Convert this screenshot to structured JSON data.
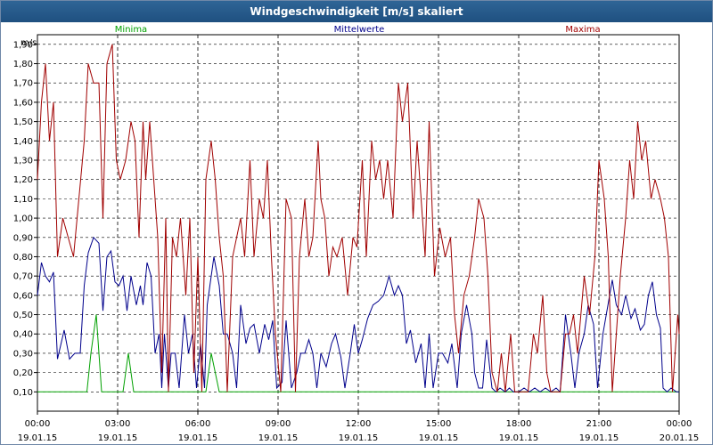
{
  "window": {
    "title": "Windgeschwindigkeit [m/s] skaliert"
  },
  "chart_data": {
    "type": "line",
    "ylabel": "m/s",
    "ylim": [
      0.0,
      1.95
    ],
    "grid": true,
    "legend_position": "top",
    "y_ticks": [
      "0,10",
      "0,20",
      "0,30",
      "0,40",
      "0,50",
      "0,60",
      "0,70",
      "0,80",
      "0,90",
      "1,00",
      "1,10",
      "1,20",
      "1,30",
      "1,40",
      "1,50",
      "1,60",
      "1,70",
      "1,80",
      "1,90"
    ],
    "x_ticks": [
      {
        "time": "00:00",
        "date": "19.01.15"
      },
      {
        "time": "03:00",
        "date": "19.01.15"
      },
      {
        "time": "06:00",
        "date": "19.01.15"
      },
      {
        "time": "09:00",
        "date": "19.01.15"
      },
      {
        "time": "12:00",
        "date": "19.01.15"
      },
      {
        "time": "15:00",
        "date": "19.01.15"
      },
      {
        "time": "18:00",
        "date": "19.01.15"
      },
      {
        "time": "21:00",
        "date": "19.01.15"
      },
      {
        "time": "00:00",
        "date": "20.01.15"
      }
    ],
    "x_unit": "hours",
    "xlim": [
      0,
      24
    ],
    "series": [
      {
        "name": "Minima",
        "color": "#00a000",
        "points": [
          [
            0,
            0.1
          ],
          [
            1.85,
            0.1
          ],
          [
            2.0,
            0.3
          ],
          [
            2.2,
            0.5
          ],
          [
            2.4,
            0.1
          ],
          [
            3.2,
            0.1
          ],
          [
            3.4,
            0.3
          ],
          [
            3.6,
            0.1
          ],
          [
            6.3,
            0.1
          ],
          [
            6.5,
            0.3
          ],
          [
            6.8,
            0.1
          ],
          [
            24,
            0.1
          ]
        ]
      },
      {
        "name": "Mittelwerte",
        "color": "#00008b",
        "points": [
          [
            0,
            0.6
          ],
          [
            0.15,
            0.77
          ],
          [
            0.3,
            0.7
          ],
          [
            0.45,
            0.67
          ],
          [
            0.6,
            0.72
          ],
          [
            0.75,
            0.27
          ],
          [
            1.0,
            0.42
          ],
          [
            1.2,
            0.27
          ],
          [
            1.4,
            0.3
          ],
          [
            1.6,
            0.3
          ],
          [
            1.75,
            0.65
          ],
          [
            1.9,
            0.82
          ],
          [
            2.1,
            0.9
          ],
          [
            2.3,
            0.87
          ],
          [
            2.45,
            0.52
          ],
          [
            2.6,
            0.8
          ],
          [
            2.75,
            0.83
          ],
          [
            2.9,
            0.67
          ],
          [
            3.05,
            0.65
          ],
          [
            3.2,
            0.7
          ],
          [
            3.35,
            0.52
          ],
          [
            3.5,
            0.7
          ],
          [
            3.7,
            0.55
          ],
          [
            3.85,
            0.65
          ],
          [
            3.95,
            0.55
          ],
          [
            4.1,
            0.77
          ],
          [
            4.25,
            0.7
          ],
          [
            4.4,
            0.3
          ],
          [
            4.55,
            0.4
          ],
          [
            4.65,
            0.12
          ],
          [
            4.75,
            0.4
          ],
          [
            4.9,
            0.12
          ],
          [
            5.0,
            0.3
          ],
          [
            5.15,
            0.3
          ],
          [
            5.3,
            0.12
          ],
          [
            5.5,
            0.5
          ],
          [
            5.65,
            0.3
          ],
          [
            5.8,
            0.4
          ],
          [
            5.95,
            0.12
          ],
          [
            6.1,
            0.35
          ],
          [
            6.25,
            0.12
          ],
          [
            6.35,
            0.55
          ],
          [
            6.6,
            0.8
          ],
          [
            6.8,
            0.65
          ],
          [
            6.95,
            0.4
          ],
          [
            7.1,
            0.4
          ],
          [
            7.3,
            0.3
          ],
          [
            7.45,
            0.12
          ],
          [
            7.6,
            0.55
          ],
          [
            7.8,
            0.35
          ],
          [
            7.95,
            0.43
          ],
          [
            8.1,
            0.45
          ],
          [
            8.3,
            0.3
          ],
          [
            8.5,
            0.45
          ],
          [
            8.65,
            0.37
          ],
          [
            8.8,
            0.47
          ],
          [
            8.95,
            0.12
          ],
          [
            9.15,
            0.15
          ],
          [
            9.3,
            0.47
          ],
          [
            9.5,
            0.12
          ],
          [
            9.7,
            0.2
          ],
          [
            9.85,
            0.3
          ],
          [
            10.0,
            0.3
          ],
          [
            10.15,
            0.37
          ],
          [
            10.3,
            0.3
          ],
          [
            10.45,
            0.12
          ],
          [
            10.6,
            0.3
          ],
          [
            10.8,
            0.23
          ],
          [
            11.0,
            0.35
          ],
          [
            11.15,
            0.4
          ],
          [
            11.35,
            0.28
          ],
          [
            11.5,
            0.12
          ],
          [
            11.7,
            0.3
          ],
          [
            11.85,
            0.45
          ],
          [
            12.0,
            0.3
          ],
          [
            12.15,
            0.37
          ],
          [
            12.35,
            0.48
          ],
          [
            12.55,
            0.55
          ],
          [
            12.75,
            0.57
          ],
          [
            12.95,
            0.6
          ],
          [
            13.15,
            0.7
          ],
          [
            13.35,
            0.6
          ],
          [
            13.5,
            0.65
          ],
          [
            13.65,
            0.6
          ],
          [
            13.8,
            0.35
          ],
          [
            13.95,
            0.42
          ],
          [
            14.15,
            0.25
          ],
          [
            14.35,
            0.35
          ],
          [
            14.5,
            0.12
          ],
          [
            14.65,
            0.4
          ],
          [
            14.8,
            0.12
          ],
          [
            15.0,
            0.3
          ],
          [
            15.15,
            0.3
          ],
          [
            15.35,
            0.25
          ],
          [
            15.5,
            0.35
          ],
          [
            15.7,
            0.12
          ],
          [
            15.85,
            0.4
          ],
          [
            16.05,
            0.55
          ],
          [
            16.25,
            0.4
          ],
          [
            16.35,
            0.2
          ],
          [
            16.5,
            0.12
          ],
          [
            16.65,
            0.12
          ],
          [
            16.8,
            0.37
          ],
          [
            17.0,
            0.12
          ],
          [
            17.15,
            0.1
          ],
          [
            17.3,
            0.12
          ],
          [
            17.5,
            0.1
          ],
          [
            17.65,
            0.12
          ],
          [
            17.8,
            0.1
          ],
          [
            18.0,
            0.1
          ],
          [
            18.2,
            0.12
          ],
          [
            18.4,
            0.1
          ],
          [
            18.6,
            0.12
          ],
          [
            18.8,
            0.1
          ],
          [
            19.0,
            0.12
          ],
          [
            19.2,
            0.1
          ],
          [
            19.4,
            0.12
          ],
          [
            19.55,
            0.1
          ],
          [
            19.75,
            0.5
          ],
          [
            19.95,
            0.3
          ],
          [
            20.1,
            0.12
          ],
          [
            20.25,
            0.3
          ],
          [
            20.45,
            0.4
          ],
          [
            20.6,
            0.55
          ],
          [
            20.8,
            0.45
          ],
          [
            20.95,
            0.12
          ],
          [
            21.15,
            0.4
          ],
          [
            21.3,
            0.52
          ],
          [
            21.5,
            0.68
          ],
          [
            21.65,
            0.55
          ],
          [
            21.85,
            0.5
          ],
          [
            22.0,
            0.6
          ],
          [
            22.2,
            0.48
          ],
          [
            22.35,
            0.53
          ],
          [
            22.55,
            0.42
          ],
          [
            22.7,
            0.45
          ],
          [
            22.85,
            0.6
          ],
          [
            23.0,
            0.67
          ],
          [
            23.15,
            0.5
          ],
          [
            23.3,
            0.43
          ],
          [
            23.4,
            0.12
          ],
          [
            23.55,
            0.1
          ],
          [
            23.7,
            0.12
          ],
          [
            23.9,
            0.1
          ],
          [
            24.0,
            0.1
          ]
        ]
      },
      {
        "name": "Maxima",
        "color": "#a00000",
        "points": [
          [
            0,
            1.2
          ],
          [
            0.15,
            1.6
          ],
          [
            0.3,
            1.8
          ],
          [
            0.45,
            1.4
          ],
          [
            0.6,
            1.6
          ],
          [
            0.75,
            0.8
          ],
          [
            0.95,
            1.0
          ],
          [
            1.15,
            0.9
          ],
          [
            1.35,
            0.8
          ],
          [
            1.55,
            1.1
          ],
          [
            1.75,
            1.4
          ],
          [
            1.9,
            1.8
          ],
          [
            2.1,
            1.7
          ],
          [
            2.3,
            1.7
          ],
          [
            2.45,
            1.0
          ],
          [
            2.6,
            1.8
          ],
          [
            2.8,
            1.9
          ],
          [
            2.95,
            1.3
          ],
          [
            3.1,
            1.2
          ],
          [
            3.3,
            1.3
          ],
          [
            3.5,
            1.5
          ],
          [
            3.65,
            1.4
          ],
          [
            3.8,
            0.9
          ],
          [
            3.95,
            1.5
          ],
          [
            4.05,
            1.2
          ],
          [
            4.2,
            1.5
          ],
          [
            4.35,
            1.2
          ],
          [
            4.5,
            0.9
          ],
          [
            4.65,
            0.2
          ],
          [
            4.8,
            1.0
          ],
          [
            4.9,
            0.1
          ],
          [
            5.05,
            0.9
          ],
          [
            5.2,
            0.8
          ],
          [
            5.35,
            1.0
          ],
          [
            5.55,
            0.6
          ],
          [
            5.7,
            1.0
          ],
          [
            5.85,
            0.2
          ],
          [
            6.0,
            0.8
          ],
          [
            6.15,
            0.1
          ],
          [
            6.3,
            1.2
          ],
          [
            6.5,
            1.4
          ],
          [
            6.65,
            1.2
          ],
          [
            6.8,
            0.9
          ],
          [
            6.95,
            0.7
          ],
          [
            7.1,
            0.1
          ],
          [
            7.3,
            0.8
          ],
          [
            7.45,
            0.9
          ],
          [
            7.6,
            1.0
          ],
          [
            7.75,
            0.8
          ],
          [
            7.95,
            1.3
          ],
          [
            8.1,
            0.8
          ],
          [
            8.3,
            1.1
          ],
          [
            8.45,
            1.0
          ],
          [
            8.6,
            1.3
          ],
          [
            8.75,
            0.8
          ],
          [
            8.9,
            0.4
          ],
          [
            9.1,
            0.1
          ],
          [
            9.3,
            1.1
          ],
          [
            9.5,
            1.0
          ],
          [
            9.65,
            0.1
          ],
          [
            9.8,
            0.8
          ],
          [
            10.0,
            1.1
          ],
          [
            10.15,
            0.8
          ],
          [
            10.3,
            0.9
          ],
          [
            10.5,
            1.4
          ],
          [
            10.6,
            1.1
          ],
          [
            10.75,
            1.0
          ],
          [
            10.9,
            0.7
          ],
          [
            11.05,
            0.85
          ],
          [
            11.2,
            0.8
          ],
          [
            11.4,
            0.9
          ],
          [
            11.6,
            0.6
          ],
          [
            11.8,
            0.9
          ],
          [
            11.95,
            0.85
          ],
          [
            12.15,
            1.3
          ],
          [
            12.3,
            0.8
          ],
          [
            12.5,
            1.4
          ],
          [
            12.65,
            1.2
          ],
          [
            12.8,
            1.3
          ],
          [
            12.95,
            1.1
          ],
          [
            13.1,
            1.3
          ],
          [
            13.3,
            1.0
          ],
          [
            13.5,
            1.7
          ],
          [
            13.65,
            1.5
          ],
          [
            13.85,
            1.7
          ],
          [
            14.05,
            1.0
          ],
          [
            14.2,
            1.4
          ],
          [
            14.35,
            1.1
          ],
          [
            14.5,
            0.8
          ],
          [
            14.65,
            1.5
          ],
          [
            14.85,
            0.7
          ],
          [
            15.05,
            0.95
          ],
          [
            15.25,
            0.8
          ],
          [
            15.45,
            0.9
          ],
          [
            15.6,
            0.5
          ],
          [
            15.75,
            0.3
          ],
          [
            15.95,
            0.6
          ],
          [
            16.15,
            0.7
          ],
          [
            16.35,
            0.9
          ],
          [
            16.5,
            1.1
          ],
          [
            16.7,
            1.0
          ],
          [
            16.85,
            0.7
          ],
          [
            17.0,
            0.2
          ],
          [
            17.2,
            0.1
          ],
          [
            17.35,
            0.3
          ],
          [
            17.5,
            0.1
          ],
          [
            17.7,
            0.4
          ],
          [
            17.85,
            0.1
          ],
          [
            18.05,
            0.1
          ],
          [
            18.2,
            0.1
          ],
          [
            18.35,
            0.1
          ],
          [
            18.55,
            0.4
          ],
          [
            18.7,
            0.3
          ],
          [
            18.9,
            0.6
          ],
          [
            19.05,
            0.2
          ],
          [
            19.2,
            0.1
          ],
          [
            19.4,
            0.1
          ],
          [
            19.55,
            0.1
          ],
          [
            19.75,
            0.4
          ],
          [
            19.9,
            0.4
          ],
          [
            20.05,
            0.5
          ],
          [
            20.2,
            0.3
          ],
          [
            20.45,
            0.7
          ],
          [
            20.65,
            0.5
          ],
          [
            20.85,
            0.8
          ],
          [
            21.0,
            1.3
          ],
          [
            21.2,
            1.1
          ],
          [
            21.35,
            0.8
          ],
          [
            21.5,
            0.1
          ],
          [
            21.65,
            0.4
          ],
          [
            21.8,
            0.7
          ],
          [
            22.0,
            1.0
          ],
          [
            22.15,
            1.3
          ],
          [
            22.3,
            1.1
          ],
          [
            22.45,
            1.5
          ],
          [
            22.6,
            1.3
          ],
          [
            22.75,
            1.4
          ],
          [
            22.95,
            1.1
          ],
          [
            23.1,
            1.2
          ],
          [
            23.3,
            1.1
          ],
          [
            23.45,
            1.0
          ],
          [
            23.6,
            0.8
          ],
          [
            23.75,
            0.1
          ],
          [
            23.95,
            0.5
          ],
          [
            24.0,
            0.4
          ]
        ]
      }
    ]
  }
}
